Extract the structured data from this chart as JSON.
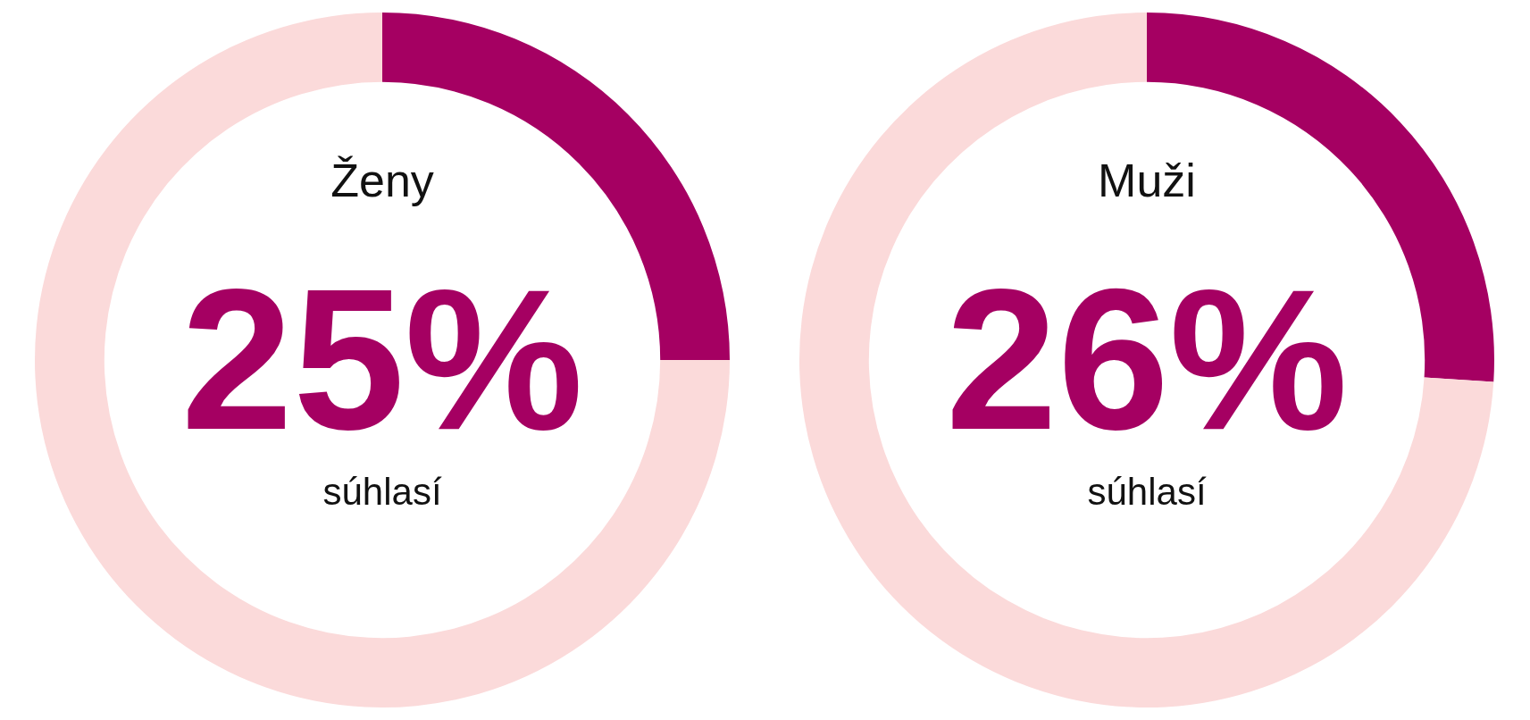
{
  "chart_data": [
    {
      "type": "donut",
      "title": "Ženy",
      "categories": [
        "súhlasí",
        null
      ],
      "values": [
        25,
        75
      ],
      "colors": [
        "#a50062",
        "#fbdada"
      ],
      "value_labels": [
        "25%",
        null
      ],
      "legend": false
    },
    {
      "type": "donut",
      "title": "Muži",
      "categories": [
        "súhlasí",
        null
      ],
      "values": [
        26,
        74
      ],
      "colors": [
        "#a50062",
        "#fbdada"
      ],
      "value_labels": [
        "26%",
        null
      ],
      "legend": false
    }
  ]
}
